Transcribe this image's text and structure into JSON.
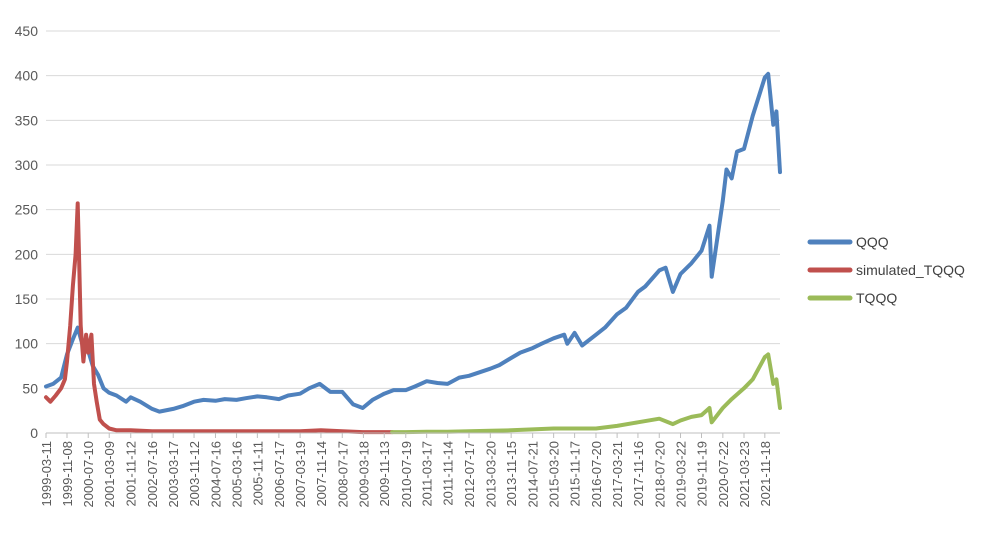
{
  "chart_data": {
    "type": "line",
    "title": "",
    "xlabel": "",
    "ylabel": "",
    "ylim": [
      0,
      450
    ],
    "yticks": [
      0,
      50,
      100,
      150,
      200,
      250,
      300,
      350,
      400,
      450
    ],
    "grid": true,
    "legend_position": "right",
    "x_tick_labels": [
      "1999-03-11",
      "1999-11-08",
      "2000-07-10",
      "2001-03-09",
      "2001-11-12",
      "2002-07-16",
      "2003-03-17",
      "2003-11-12",
      "2004-07-16",
      "2005-03-16",
      "2005-11-11",
      "2006-07-17",
      "2007-03-19",
      "2007-11-14",
      "2008-07-17",
      "2009-03-18",
      "2009-11-13",
      "2010-07-19",
      "2011-03-17",
      "2011-11-14",
      "2012-07-17",
      "2013-03-20",
      "2013-11-15",
      "2014-07-21",
      "2015-03-20",
      "2015-11-17",
      "2016-07-20",
      "2017-03-21",
      "2017-11-16",
      "2018-07-20",
      "2019-03-22",
      "2019-11-19",
      "2020-07-22",
      "2021-03-23",
      "2021-11-18"
    ],
    "series": [
      {
        "name": "QQQ",
        "color": "#4f81bd",
        "x": [
          "1999-03-11",
          "1999-06-01",
          "1999-09-01",
          "1999-11-08",
          "2000-01-15",
          "2000-03-10",
          "2000-05-01",
          "2000-07-10",
          "2000-09-01",
          "2000-11-01",
          "2001-01-02",
          "2001-03-09",
          "2001-06-01",
          "2001-09-20",
          "2001-11-12",
          "2002-03-01",
          "2002-07-16",
          "2002-10-09",
          "2003-03-17",
          "2003-07-01",
          "2003-11-12",
          "2004-03-01",
          "2004-07-16",
          "2004-11-01",
          "2005-03-16",
          "2005-07-01",
          "2005-11-11",
          "2006-03-01",
          "2006-07-17",
          "2006-11-01",
          "2007-03-19",
          "2007-07-01",
          "2007-10-31",
          "2008-03-01",
          "2008-07-17",
          "2008-11-20",
          "2009-03-09",
          "2009-07-01",
          "2009-11-13",
          "2010-03-01",
          "2010-07-19",
          "2010-11-01",
          "2011-03-17",
          "2011-07-20",
          "2011-11-14",
          "2012-03-26",
          "2012-07-17",
          "2012-11-15",
          "2013-03-20",
          "2013-07-01",
          "2013-11-15",
          "2014-03-01",
          "2014-07-21",
          "2014-11-01",
          "2015-03-20",
          "2015-07-20",
          "2015-08-24",
          "2015-11-17",
          "2016-02-11",
          "2016-07-20",
          "2016-11-01",
          "2017-03-21",
          "2017-07-01",
          "2017-11-16",
          "2018-02-08",
          "2018-07-20",
          "2018-10-01",
          "2018-12-24",
          "2019-03-22",
          "2019-07-25",
          "2019-11-19",
          "2020-02-19",
          "2020-03-16",
          "2020-07-22",
          "2020-09-02",
          "2020-11-01",
          "2021-01-01",
          "2021-03-23",
          "2021-07-01",
          "2021-11-18",
          "2021-12-27",
          "2022-02-24",
          "2022-04-01",
          "2022-05-12"
        ],
        "values": [
          52,
          55,
          62,
          88,
          105,
          118,
          100,
          92,
          75,
          65,
          50,
          45,
          42,
          35,
          40,
          35,
          27,
          24,
          27,
          30,
          35,
          37,
          36,
          38,
          37,
          39,
          41,
          40,
          38,
          42,
          44,
          50,
          55,
          46,
          46,
          32,
          28,
          37,
          44,
          48,
          48,
          52,
          58,
          56,
          55,
          62,
          64,
          68,
          72,
          76,
          84,
          90,
          95,
          100,
          106,
          110,
          100,
          112,
          98,
          110,
          118,
          133,
          140,
          158,
          164,
          182,
          185,
          158,
          178,
          190,
          204,
          232,
          175,
          260,
          295,
          285,
          315,
          318,
          355,
          398,
          402,
          345,
          360,
          292
        ]
      },
      {
        "name": "simulated_TQQQ",
        "color": "#c0504d",
        "x": [
          "1999-03-11",
          "1999-05-01",
          "1999-07-01",
          "1999-09-01",
          "1999-10-15",
          "1999-11-08",
          "1999-12-15",
          "2000-01-15",
          "2000-02-15",
          "2000-03-10",
          "2000-03-25",
          "2000-04-14",
          "2000-05-15",
          "2000-06-15",
          "2000-07-10",
          "2000-08-15",
          "2000-09-15",
          "2000-10-15",
          "2000-11-20",
          "2001-01-02",
          "2001-03-09",
          "2001-06-01",
          "2001-11-12",
          "2002-07-16",
          "2003-03-17",
          "2004-07-16",
          "2005-11-11",
          "2007-03-19",
          "2007-11-14",
          "2008-07-17",
          "2009-03-09",
          "2010-02-11"
        ],
        "values": [
          40,
          35,
          42,
          50,
          60,
          80,
          120,
          165,
          200,
          257,
          200,
          120,
          80,
          110,
          90,
          110,
          55,
          35,
          15,
          10,
          5,
          3,
          3,
          2,
          2,
          2,
          2,
          2,
          3,
          2,
          1,
          1
        ]
      },
      {
        "name": "TQQQ",
        "color": "#9bbb59",
        "x": [
          "2010-02-11",
          "2010-07-19",
          "2011-03-17",
          "2011-11-14",
          "2012-07-17",
          "2013-03-20",
          "2013-11-15",
          "2014-07-21",
          "2015-03-20",
          "2015-11-17",
          "2016-07-20",
          "2017-03-21",
          "2017-11-16",
          "2018-07-20",
          "2018-12-24",
          "2019-03-22",
          "2019-07-25",
          "2019-11-19",
          "2020-02-19",
          "2020-03-16",
          "2020-07-22",
          "2020-11-01",
          "2021-03-23",
          "2021-07-01",
          "2021-11-18",
          "2021-12-27",
          "2022-02-24",
          "2022-04-01",
          "2022-05-12"
        ],
        "values": [
          1,
          1,
          1.5,
          1.5,
          2,
          2.5,
          3,
          4,
          5,
          5,
          5,
          8,
          12,
          16,
          10,
          14,
          18,
          20,
          28,
          12,
          28,
          38,
          50,
          60,
          85,
          88,
          55,
          60,
          28
        ]
      }
    ]
  }
}
